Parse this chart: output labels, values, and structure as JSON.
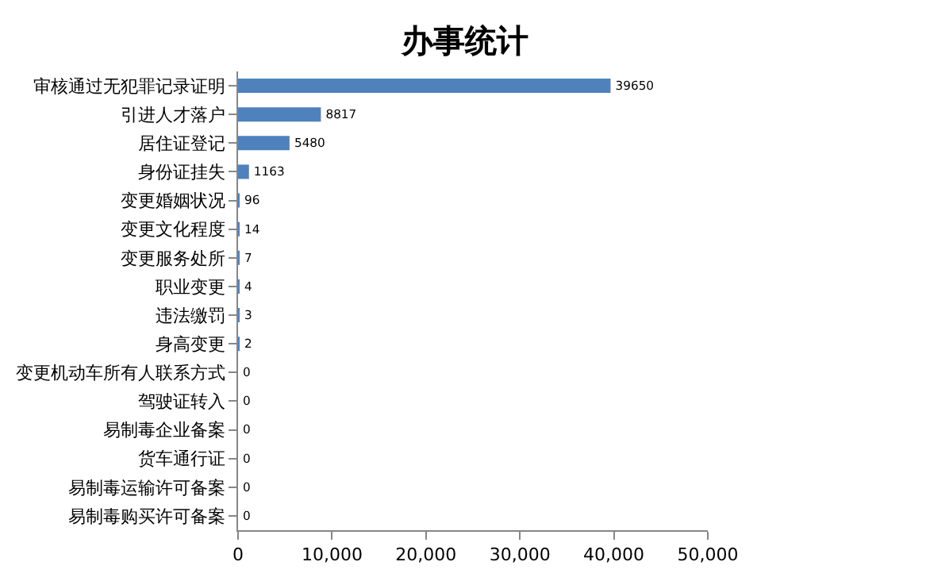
{
  "chart_data": {
    "type": "bar",
    "orientation": "horizontal",
    "title": "办事统计",
    "categories": [
      "审核通过无犯罪记录证明",
      "引进人才落户",
      "居住证登记",
      "身份证挂失",
      "变更婚姻状况",
      "变更文化程度",
      "变更服务处所",
      "职业变更",
      "违法缴罚",
      "身高变更",
      "变更机动车所有人联系方式",
      "驾驶证转入",
      "易制毒企业备案",
      "货车通行证",
      "易制毒运输许可备案",
      "易制毒购买许可备案"
    ],
    "values": [
      39650,
      8817,
      5480,
      1163,
      96,
      14,
      7,
      4,
      3,
      2,
      0,
      0,
      0,
      0,
      0,
      0
    ],
    "color": "#4f81bd",
    "xlim": [
      0,
      50000
    ],
    "xticks": [
      0,
      {
        "value": 10000,
        "label": "10,000"
      },
      {
        "value": 20000,
        "label": "20,000"
      },
      {
        "value": 30000,
        "label": "30,000"
      },
      {
        "value": 40000,
        "label": "40,000"
      },
      {
        "value": 50000,
        "label": "50,000"
      }
    ],
    "data_labels": true
  }
}
